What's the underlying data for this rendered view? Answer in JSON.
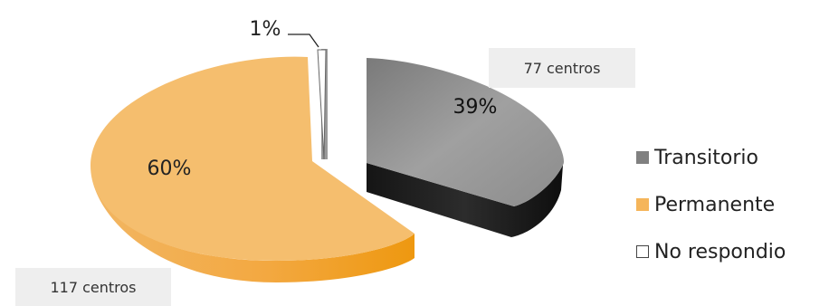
{
  "chart_data": {
    "type": "pie",
    "title": "",
    "slices": [
      {
        "name": "Transitorio",
        "percent": 39,
        "count_label": "77 centros",
        "label": "39%",
        "color": "#808080"
      },
      {
        "name": "Permanente",
        "percent": 60,
        "count_label": "117 centros",
        "label": "60%",
        "color": "#f5b55a"
      },
      {
        "name": "No respondio",
        "percent": 1,
        "label": "1%",
        "color": "#ffffff"
      }
    ],
    "legend": {
      "position": "right",
      "entries": [
        {
          "label": "Transitorio",
          "color": "#808080"
        },
        {
          "label": "Permanente",
          "color": "#f5b55a"
        },
        {
          "label": "No respondio",
          "color": "#ffffff"
        }
      ]
    },
    "style": "3d-exploded"
  }
}
